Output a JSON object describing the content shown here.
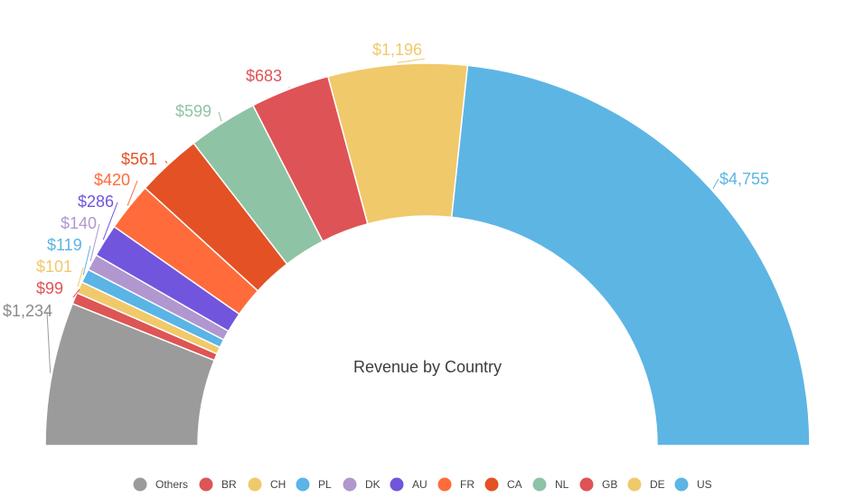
{
  "chart_data": {
    "type": "pie",
    "variant": "semi-donut",
    "title": "Revenue by Country",
    "legend_position": "bottom",
    "slices": [
      {
        "name": "Others",
        "value": 1234,
        "label": "$1,234",
        "color": "#9b9b9b"
      },
      {
        "name": "BR",
        "value": 99,
        "label": "$99",
        "color": "#dd5555"
      },
      {
        "name": "CH",
        "value": 101,
        "label": "$101",
        "color": "#f0c96b"
      },
      {
        "name": "PL",
        "value": 119,
        "label": "$119",
        "color": "#5ab4e5"
      },
      {
        "name": "DK",
        "value": 140,
        "label": "$140",
        "color": "#b197cf"
      },
      {
        "name": "AU",
        "value": 286,
        "label": "$286",
        "color": "#7155dd"
      },
      {
        "name": "FR",
        "value": 420,
        "label": "$420",
        "color": "#ff6b3a"
      },
      {
        "name": "CA",
        "value": 561,
        "label": "$561",
        "color": "#e35125"
      },
      {
        "name": "NL",
        "value": 599,
        "label": "$599",
        "color": "#8fc3a5"
      },
      {
        "name": "GB",
        "value": 683,
        "label": "$683",
        "color": "#de5356"
      },
      {
        "name": "DE",
        "value": 1196,
        "label": "$1,196",
        "color": "#f0c96b"
      },
      {
        "name": "US",
        "value": 4755,
        "label": "$4,755",
        "color": "#5db5e4"
      }
    ]
  }
}
